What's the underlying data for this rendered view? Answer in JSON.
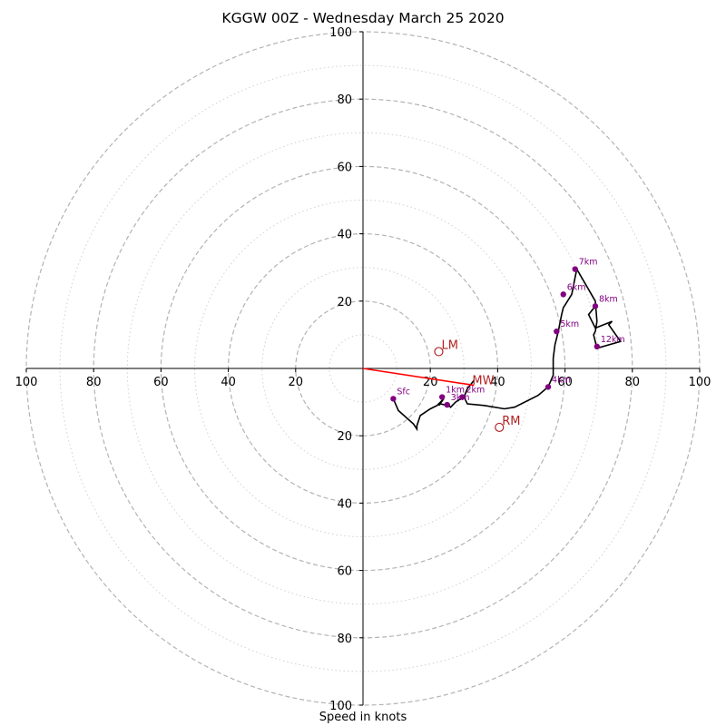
{
  "chart_data": {
    "type": "line",
    "title": "KGGW 00Z - Wednesday March 25 2020",
    "xlabel": "Speed in knots",
    "ylabel": "",
    "xlim": [
      -100,
      100
    ],
    "ylim": [
      -100,
      100
    ],
    "axis_ticks": [
      "100",
      "80",
      "60",
      "40",
      "20",
      "20",
      "40",
      "60",
      "80",
      "100"
    ],
    "ring_speeds": [
      10,
      20,
      30,
      40,
      50,
      60,
      70,
      80,
      90,
      100
    ],
    "hodograph": {
      "x": [
        9,
        10.5,
        15,
        16,
        16,
        17,
        20,
        22,
        24,
        22.5,
        23,
        25,
        25,
        26,
        27.5,
        29,
        30,
        31,
        33,
        31,
        30,
        31,
        36,
        42,
        45,
        52,
        55,
        56.5,
        56.5,
        57,
        58,
        59,
        59.5,
        62,
        63,
        63.5,
        69,
        69.5,
        69,
        68.5,
        69.5,
        76.5,
        73,
        74,
        69,
        67,
        69
      ],
      "y": [
        -9,
        -12.5,
        -16.5,
        -18,
        -17,
        -14,
        -12,
        -11,
        -9,
        -11,
        -10.5,
        -11,
        -10.5,
        -11.5,
        -10,
        -9,
        -8.5,
        -6,
        -3.5,
        -6,
        -8.5,
        -10.5,
        -11,
        -12,
        -11.5,
        -8,
        -5.5,
        -2,
        3,
        7,
        11,
        16,
        18,
        22,
        27,
        29.5,
        20,
        14,
        11,
        10,
        6,
        8,
        13,
        14,
        12,
        16,
        18.5
      ]
    },
    "height_markers": [
      {
        "label": "Sfc",
        "x": 9,
        "y": -9
      },
      {
        "label": "1km",
        "x": 23.5,
        "y": -8.5
      },
      {
        "label": "2km",
        "x": 29.5,
        "y": -8.5
      },
      {
        "label": "3km",
        "x": 25,
        "y": -10.8
      },
      {
        "label": "4km",
        "x": 55,
        "y": -5.5
      },
      {
        "label": "5km",
        "x": 57.5,
        "y": 11
      },
      {
        "label": "6km",
        "x": 59.5,
        "y": 22
      },
      {
        "label": "7km",
        "x": 63,
        "y": 29.5
      },
      {
        "label": "8km",
        "x": 69,
        "y": 18.5
      },
      {
        "label": "12km",
        "x": 69.5,
        "y": 6.5
      }
    ],
    "storm_motion": [
      {
        "label": "LM",
        "x": 22.5,
        "y": 5
      },
      {
        "label": "RM",
        "x": 40.5,
        "y": -17.5
      }
    ],
    "mean_wind": {
      "label": "MW",
      "x": 33,
      "y": -5,
      "line_from": [
        0,
        0
      ]
    },
    "grid": true,
    "legend": "none",
    "colors": {
      "trace": "#000000",
      "marker": "#800080",
      "storm": "#b22222",
      "shear_vector": "#ff0000",
      "grid": "#b3b3b3"
    }
  }
}
